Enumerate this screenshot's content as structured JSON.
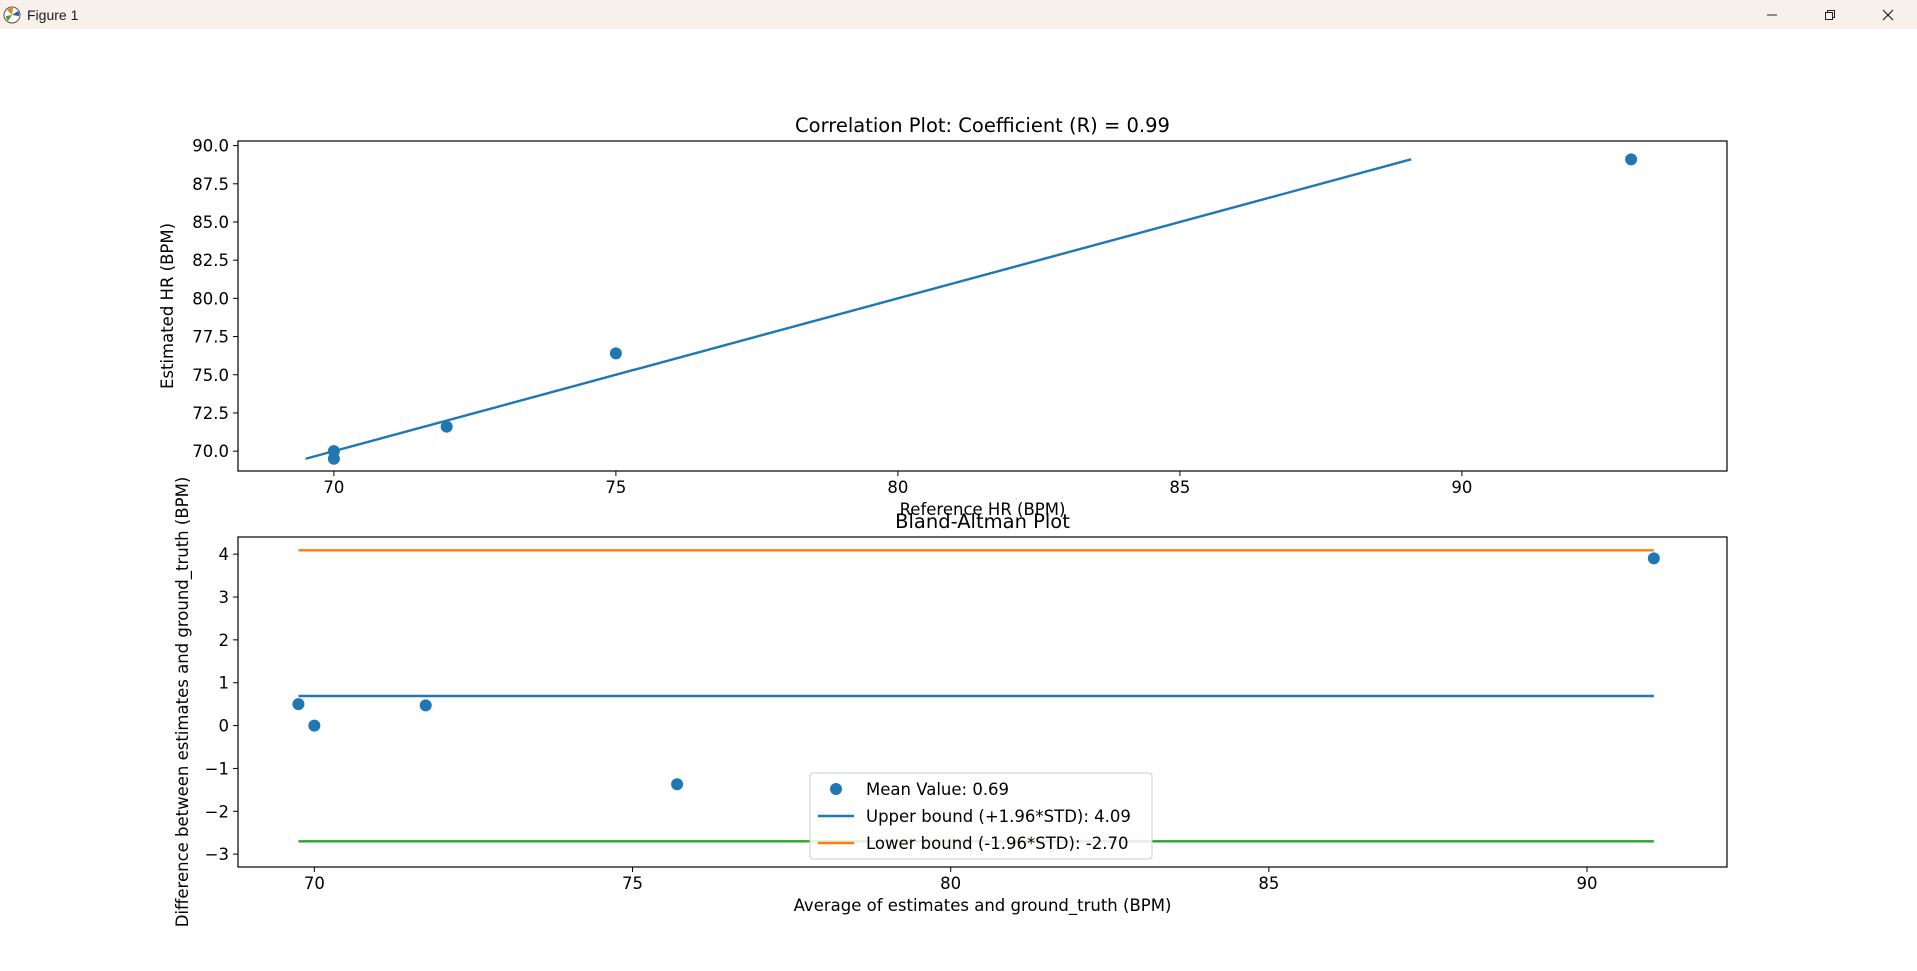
{
  "window": {
    "title": "Figure 1",
    "icon": "matplotlib-icon",
    "controls": [
      "minimize-icon",
      "restore-icon",
      "close-icon"
    ]
  },
  "chart_data": [
    {
      "type": "scatter",
      "title": "Correlation Plot: Coefficient (R) = 0.99",
      "xlabel": "Reference HR (BPM)",
      "ylabel": "Estimated HR (BPM)",
      "xlim": [
        68.3,
        94.7
      ],
      "ylim": [
        68.7,
        90.3
      ],
      "xticks": [
        70,
        75,
        80,
        85,
        90
      ],
      "xtick_labels": [
        "70",
        "75",
        "80",
        "85",
        "90"
      ],
      "yticks": [
        70.0,
        72.5,
        75.0,
        77.5,
        80.0,
        82.5,
        85.0,
        87.5,
        90.0
      ],
      "ytick_labels": [
        "70.0",
        "72.5",
        "75.0",
        "77.5",
        "80.0",
        "82.5",
        "85.0",
        "87.5",
        "90.0"
      ],
      "grid": false,
      "color": "#1f77b4",
      "points": [
        {
          "x": 70.0,
          "y": 70.0
        },
        {
          "x": 70.0,
          "y": 69.5
        },
        {
          "x": 72.0,
          "y": 71.6
        },
        {
          "x": 75.0,
          "y": 76.4
        },
        {
          "x": 93.0,
          "y": 89.1
        }
      ],
      "fit_line": {
        "x": [
          69.5,
          89.1
        ],
        "y": [
          69.5,
          89.1
        ]
      }
    },
    {
      "type": "scatter",
      "title": "Bland-Altman Plot",
      "xlabel": "Average of estimates and ground_truth (BPM)",
      "ylabel": "Difference between estimates and ground_truth (BPM)",
      "xlim": [
        68.8,
        92.2
      ],
      "ylim": [
        -3.3,
        4.4
      ],
      "xticks": [
        70,
        75,
        80,
        85,
        90
      ],
      "xtick_labels": [
        "70",
        "75",
        "80",
        "85",
        "90"
      ],
      "yticks": [
        -3,
        -2,
        -1,
        0,
        1,
        2,
        3,
        4
      ],
      "ytick_labels": [
        "−3",
        "−2",
        "−1",
        "0",
        "1",
        "2",
        "3",
        "4"
      ],
      "grid": false,
      "legend_position": "lower center",
      "points": [
        {
          "x": 69.75,
          "y": 0.5
        },
        {
          "x": 70.0,
          "y": 0.0
        },
        {
          "x": 71.75,
          "y": 0.47
        },
        {
          "x": 75.7,
          "y": -1.37
        },
        {
          "x": 91.05,
          "y": 3.9
        }
      ],
      "x_span": [
        69.75,
        91.05
      ],
      "lines": [
        {
          "y": 0.69,
          "color": "#1f77b4"
        },
        {
          "y": 4.09,
          "color": "#ff7f0e"
        },
        {
          "y": -2.7,
          "color": "#2ca02c"
        }
      ],
      "series": [
        {
          "name": "Mean Value: 0.69",
          "kind": "marker",
          "color": "#1f77b4"
        },
        {
          "name": "Upper bound (+1.96*STD): 4.09",
          "kind": "line",
          "color": "#1f77b4"
        },
        {
          "name": "Lower bound (-1.96*STD): -2.70",
          "kind": "line",
          "color": "#ff7f0e"
        }
      ]
    }
  ]
}
